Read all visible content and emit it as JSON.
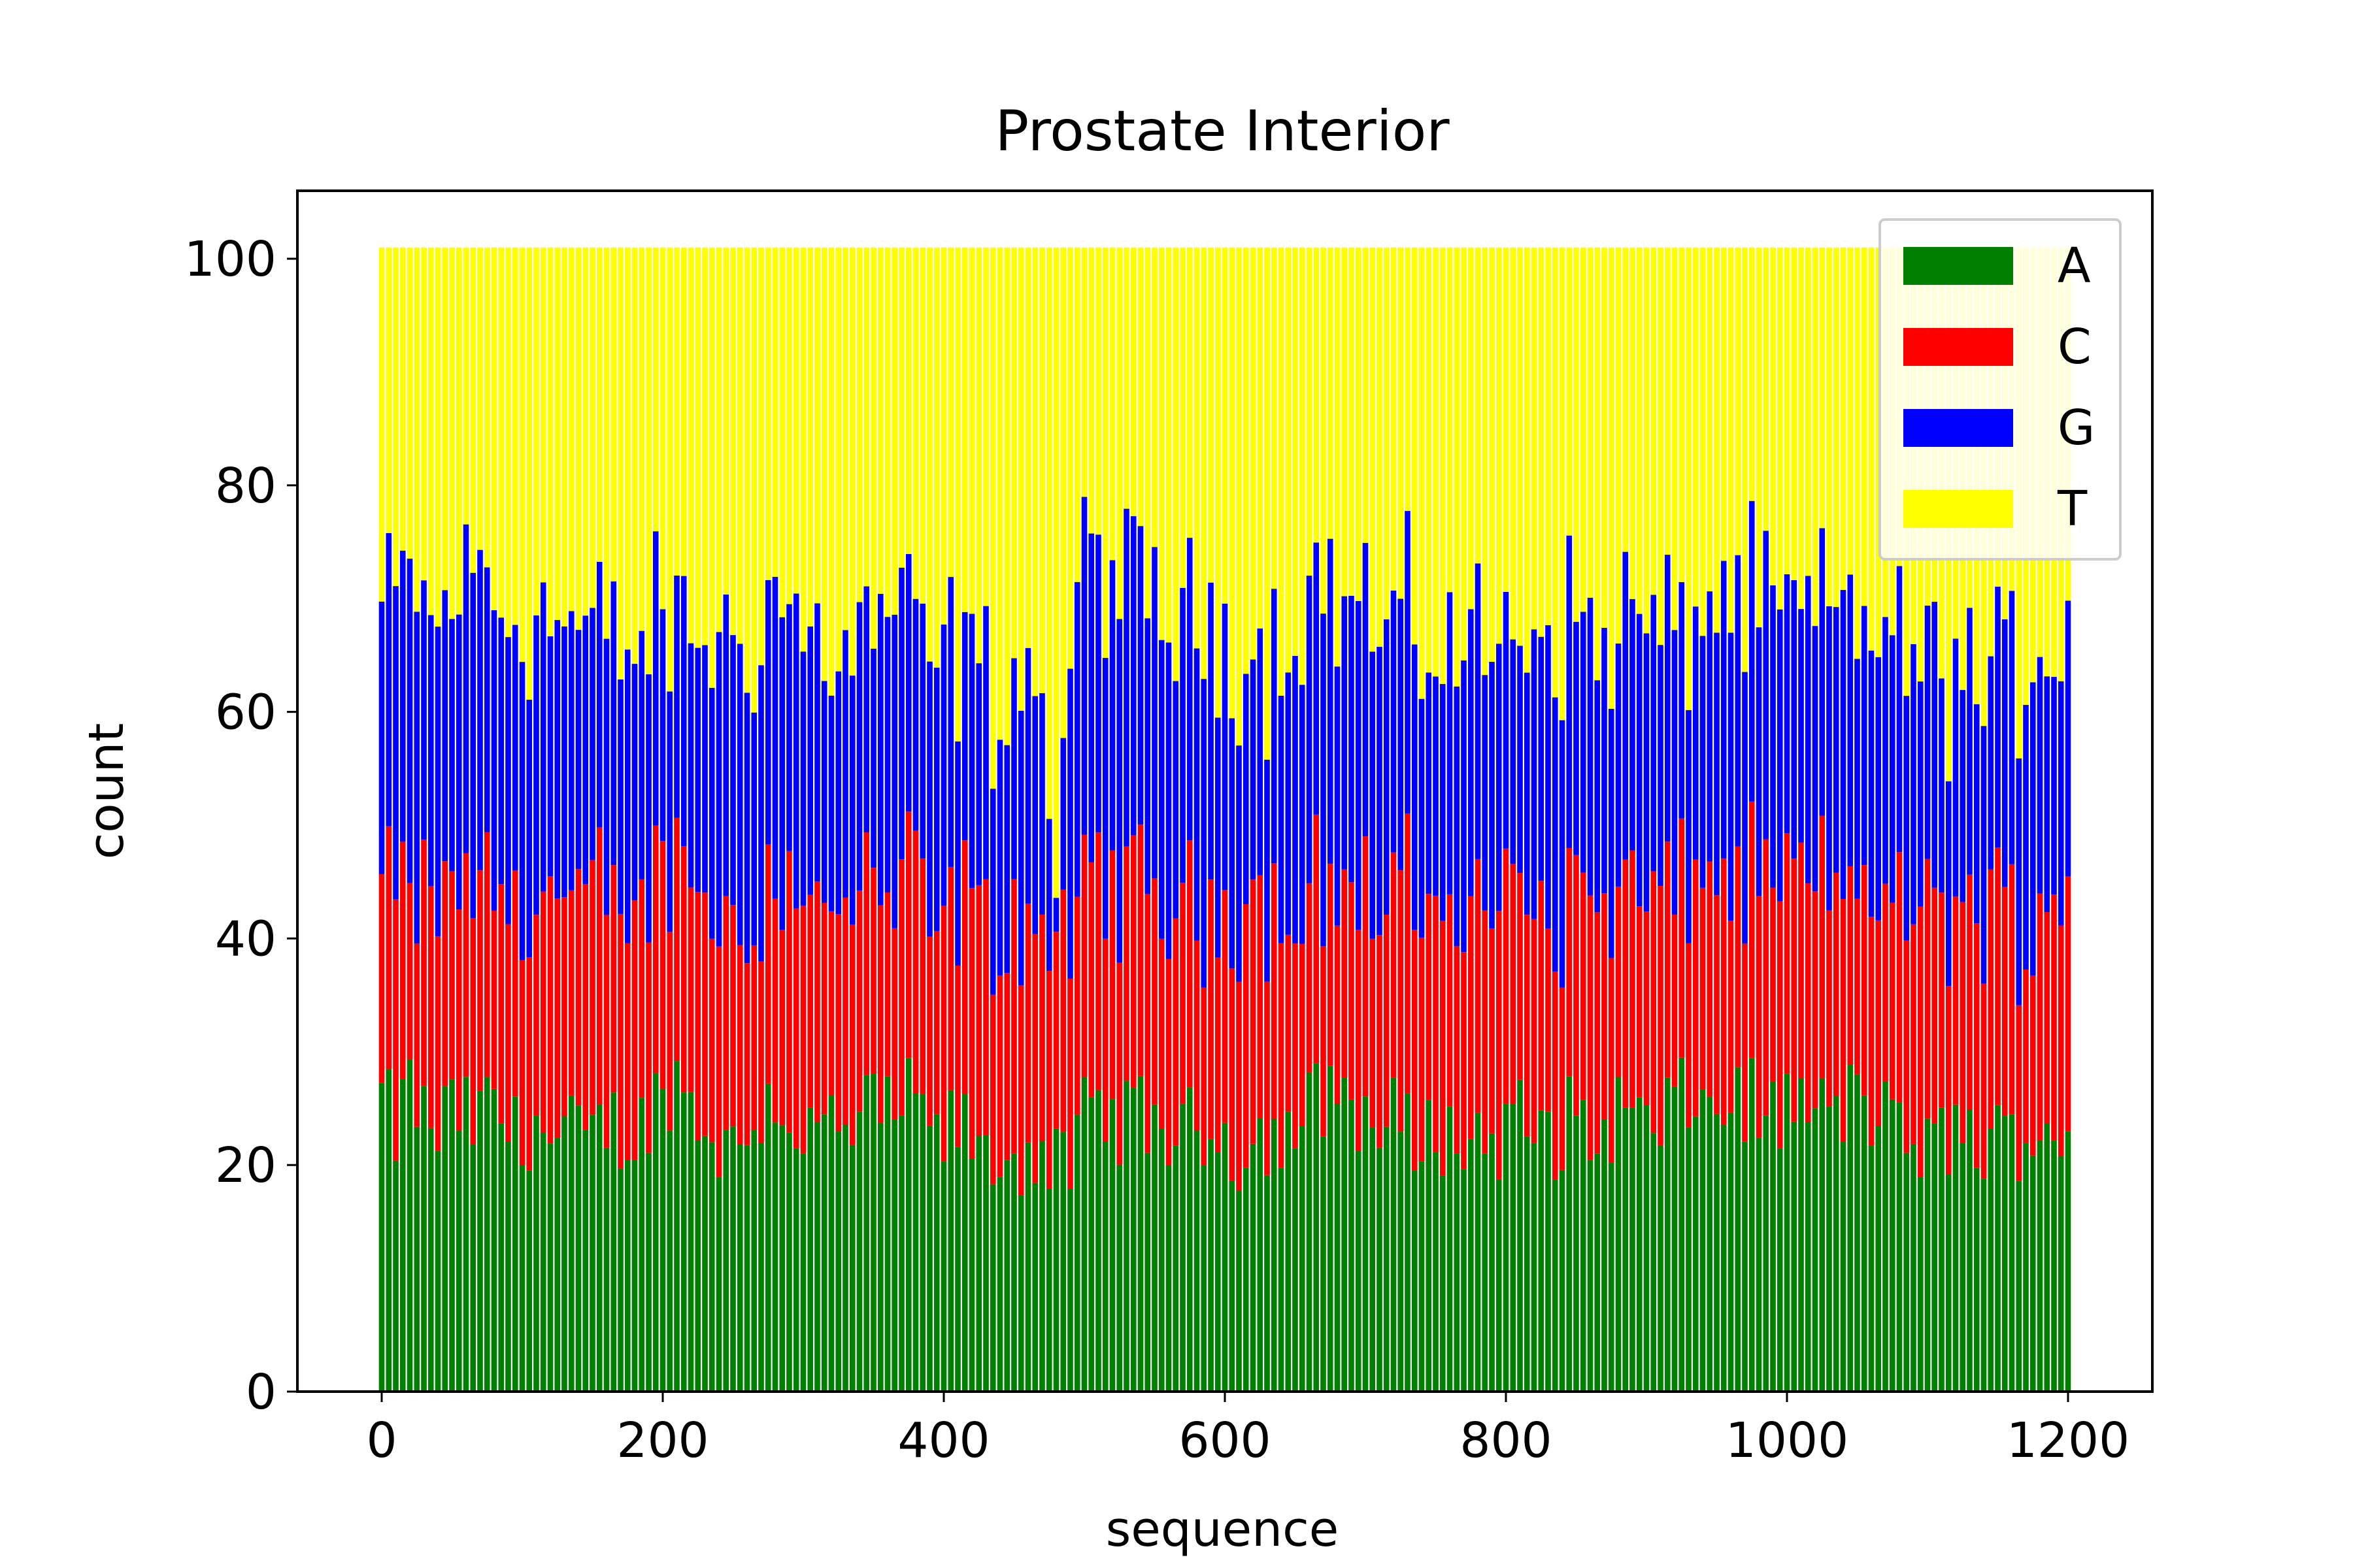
{
  "chart_data": {
    "type": "bar",
    "stacked": true,
    "title": "Prostate Interior",
    "xlabel": "sequence",
    "ylabel": "count",
    "xlim": [
      -60,
      1260
    ],
    "ylim": [
      0,
      106
    ],
    "xticks": [
      0,
      200,
      400,
      600,
      800,
      1000,
      1200
    ],
    "yticks": [
      0,
      20,
      40,
      60,
      80,
      100
    ],
    "x_step": 5,
    "legend": "upper-right",
    "colors": {
      "A": "#008000",
      "C": "#ff0000",
      "G": "#0000ff",
      "T": "#ffff00"
    },
    "series_order": [
      "A",
      "C",
      "G",
      "T"
    ],
    "profile": {
      "x": [
        0,
        10,
        20,
        30,
        40,
        50,
        60,
        70,
        80,
        90,
        100,
        110,
        120,
        130,
        140,
        150,
        160,
        170,
        180,
        190,
        200,
        210,
        220,
        230,
        240,
        250,
        260,
        270,
        280,
        290,
        300,
        310,
        320,
        330,
        340,
        350,
        360,
        370,
        380,
        390,
        400,
        410,
        420,
        430,
        440,
        450,
        460,
        470,
        480,
        485,
        490,
        495,
        500,
        510,
        520,
        530,
        540,
        550,
        560,
        570,
        580,
        590,
        600,
        610,
        620,
        630,
        640,
        650,
        660,
        670,
        680,
        690,
        700,
        710,
        720,
        730,
        740,
        750,
        760,
        770,
        780,
        790,
        800,
        810,
        820,
        830,
        840,
        850,
        860,
        870,
        880,
        890,
        900,
        910,
        920,
        930,
        940,
        950,
        960,
        970,
        980,
        990,
        1000,
        1010,
        1020,
        1030,
        1040,
        1050,
        1060,
        1070,
        1080,
        1090,
        1100,
        1110,
        1120,
        1130,
        1140,
        1150,
        1160,
        1170,
        1180,
        1190,
        1200
      ],
      "A": [
        26,
        23,
        27,
        24,
        23,
        25,
        24,
        24,
        26,
        23,
        22,
        25,
        21,
        23,
        22,
        22,
        24,
        23,
        22,
        25,
        26,
        28,
        25,
        24,
        22,
        21,
        23,
        25,
        26,
        24,
        23,
        22,
        24,
        22,
        24,
        25,
        24,
        26,
        25,
        23,
        22,
        24,
        22,
        20,
        21,
        20,
        22,
        21,
        21,
        19,
        20,
        21,
        24,
        25,
        23,
        25,
        24,
        24,
        23,
        22,
        24,
        23,
        23,
        21,
        22,
        23,
        22,
        23,
        25,
        26,
        27,
        26,
        24,
        23,
        24,
        23,
        22,
        24,
        22,
        22,
        23,
        22,
        23,
        24,
        23,
        22,
        23,
        25,
        22,
        23,
        25,
        24,
        23,
        24,
        25,
        26,
        25,
        25,
        26,
        26,
        25,
        24,
        25,
        26,
        24,
        25,
        25,
        26,
        25,
        24,
        22,
        23,
        21,
        22,
        23,
        23,
        21,
        22,
        23,
        22,
        24,
        23,
        23
      ],
      "C": [
        20,
        20,
        18,
        19,
        20,
        21,
        20,
        21,
        19,
        20,
        21,
        20,
        22,
        21,
        20,
        21,
        20,
        19,
        20,
        20,
        19,
        20,
        21,
        20,
        20,
        21,
        20,
        19,
        20,
        21,
        20,
        21,
        20,
        19,
        21,
        20,
        20,
        19,
        20,
        20,
        20,
        19,
        21,
        20,
        19,
        21,
        20,
        19,
        18,
        19,
        21,
        20,
        20,
        21,
        22,
        20,
        21,
        20,
        21,
        20,
        19,
        20,
        20,
        21,
        20,
        20,
        20,
        19,
        20,
        19,
        19,
        18,
        20,
        19,
        20,
        21,
        20,
        20,
        21,
        20,
        19,
        20,
        20,
        21,
        20,
        20,
        19,
        20,
        21,
        20,
        19,
        20,
        20,
        20,
        19,
        19,
        20,
        20,
        20,
        19,
        20,
        21,
        20,
        19,
        20,
        20,
        20,
        19,
        20,
        21,
        20,
        20,
        21,
        20,
        20,
        20,
        21,
        20,
        20,
        19,
        19,
        20,
        21
      ],
      "G": [
        23,
        26,
        28,
        26,
        24,
        25,
        27,
        28,
        25,
        26,
        25,
        24,
        25,
        24,
        25,
        24,
        23,
        24,
        23,
        22,
        22,
        20,
        21,
        23,
        24,
        24,
        23,
        24,
        25,
        24,
        24,
        23,
        22,
        23,
        22,
        23,
        25,
        24,
        22,
        21,
        23,
        22,
        22,
        22,
        21,
        22,
        22,
        21,
        5,
        11,
        26,
        28,
        30,
        28,
        27,
        26,
        25,
        26,
        24,
        25,
        24,
        25,
        24,
        24,
        23,
        22,
        24,
        26,
        27,
        26,
        24,
        25,
        27,
        23,
        24,
        23,
        24,
        22,
        23,
        24,
        24,
        24,
        23,
        24,
        25,
        26,
        25,
        24,
        23,
        23,
        24,
        25,
        24,
        23,
        22,
        23,
        24,
        25,
        24,
        24,
        24,
        23,
        24,
        23,
        24,
        23,
        24,
        23,
        24,
        22,
        23,
        22,
        22,
        21,
        21,
        20,
        19,
        20,
        21,
        23,
        24,
        23,
        24
      ],
      "T": [
        32,
        32,
        28,
        32,
        34,
        30,
        30,
        28,
        31,
        32,
        33,
        32,
        33,
        33,
        34,
        34,
        34,
        35,
        36,
        34,
        34,
        33,
        34,
        34,
        35,
        35,
        35,
        33,
        30,
        32,
        34,
        35,
        35,
        37,
        34,
        33,
        32,
        32,
        34,
        37,
        36,
        36,
        36,
        39,
        40,
        38,
        37,
        40,
        57,
        52,
        34,
        32,
        27,
        27,
        29,
        30,
        31,
        31,
        33,
        34,
        34,
        33,
        34,
        35,
        36,
        36,
        35,
        33,
        29,
        30,
        31,
        32,
        30,
        36,
        33,
        34,
        35,
        35,
        35,
        35,
        35,
        35,
        35,
        32,
        33,
        33,
        34,
        32,
        35,
        35,
        33,
        32,
        34,
        34,
        35,
        33,
        32,
        31,
        31,
        32,
        32,
        33,
        32,
        33,
        33,
        33,
        32,
        33,
        32,
        35,
        36,
        36,
        37,
        38,
        37,
        38,
        40,
        39,
        37,
        37,
        34,
        35,
        33
      ]
    },
    "total": 101
  },
  "legend_items": [
    {
      "label": "A",
      "color": "#008000"
    },
    {
      "label": "C",
      "color": "#ff0000"
    },
    {
      "label": "G",
      "color": "#0000ff"
    },
    {
      "label": "T",
      "color": "#ffff00"
    }
  ]
}
